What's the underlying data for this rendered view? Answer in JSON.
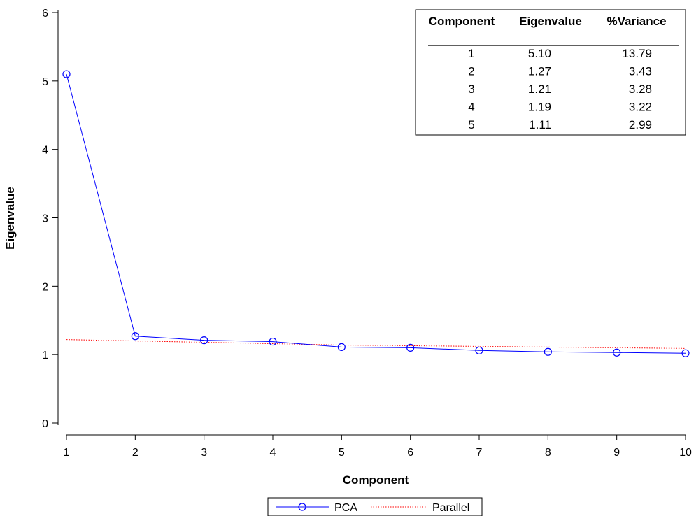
{
  "chart_data": {
    "type": "line",
    "xlabel": "Component",
    "ylabel": "Eigenvalue",
    "x": [
      1,
      2,
      3,
      4,
      5,
      6,
      7,
      8,
      9,
      10
    ],
    "xlim": [
      1,
      10
    ],
    "ylim": [
      0,
      6
    ],
    "x_ticks": [
      "1",
      "2",
      "3",
      "4",
      "5",
      "6",
      "7",
      "8",
      "9",
      "10"
    ],
    "y_ticks": [
      "0",
      "1",
      "2",
      "3",
      "4",
      "5",
      "6"
    ],
    "grid": false,
    "series": [
      {
        "name": "PCA",
        "color": "#0000ff",
        "marker": "circle",
        "line_style": "solid",
        "values": [
          5.1,
          1.27,
          1.21,
          1.19,
          1.11,
          1.1,
          1.06,
          1.04,
          1.03,
          1.02
        ]
      },
      {
        "name": "Parallel",
        "color": "#ff0000",
        "marker": "none",
        "line_style": "dotted",
        "values": [
          1.22,
          1.2,
          1.18,
          1.16,
          1.14,
          1.13,
          1.12,
          1.11,
          1.1,
          1.09
        ]
      }
    ],
    "legend": {
      "position": "bottom-center",
      "entries": [
        "PCA",
        "Parallel"
      ]
    },
    "inset_table": {
      "position": "top-right",
      "headers": [
        "Component",
        "Eigenvalue",
        "%Variance"
      ],
      "rows": [
        [
          "1",
          "5.10",
          "13.79"
        ],
        [
          "2",
          "1.27",
          "3.43"
        ],
        [
          "3",
          "1.21",
          "3.28"
        ],
        [
          "4",
          "1.19",
          "3.22"
        ],
        [
          "5",
          "1.11",
          "2.99"
        ]
      ]
    }
  }
}
